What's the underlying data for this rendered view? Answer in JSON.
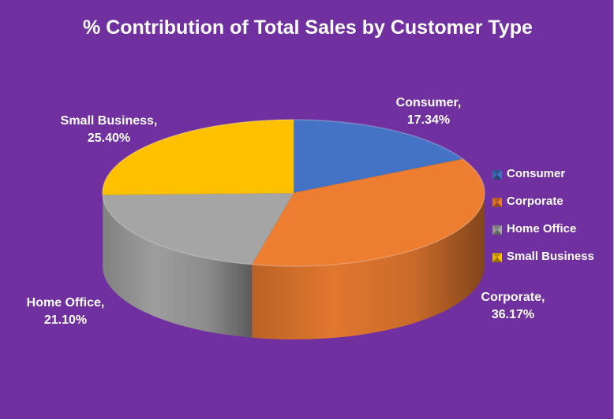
{
  "chart_data": {
    "type": "pie",
    "title": "% Contribution of Total Sales by Customer Type",
    "categories": [
      "Consumer",
      "Corporate",
      "Home Office",
      "Small Business"
    ],
    "values": [
      17.34,
      36.17,
      21.1,
      25.4
    ],
    "labels": [
      {
        "name": "Consumer,",
        "value": "17.34%"
      },
      {
        "name": "Corporate,",
        "value": "36.17%"
      },
      {
        "name": "Home Office,",
        "value": "21.10%"
      },
      {
        "name": "Small Business,",
        "value": "25.40%"
      }
    ],
    "colors": [
      "#4472c4",
      "#ed7d31",
      "#a5a5a5",
      "#ffc000"
    ],
    "background": "#7030a0",
    "legend_position": "right",
    "style": "3d"
  }
}
